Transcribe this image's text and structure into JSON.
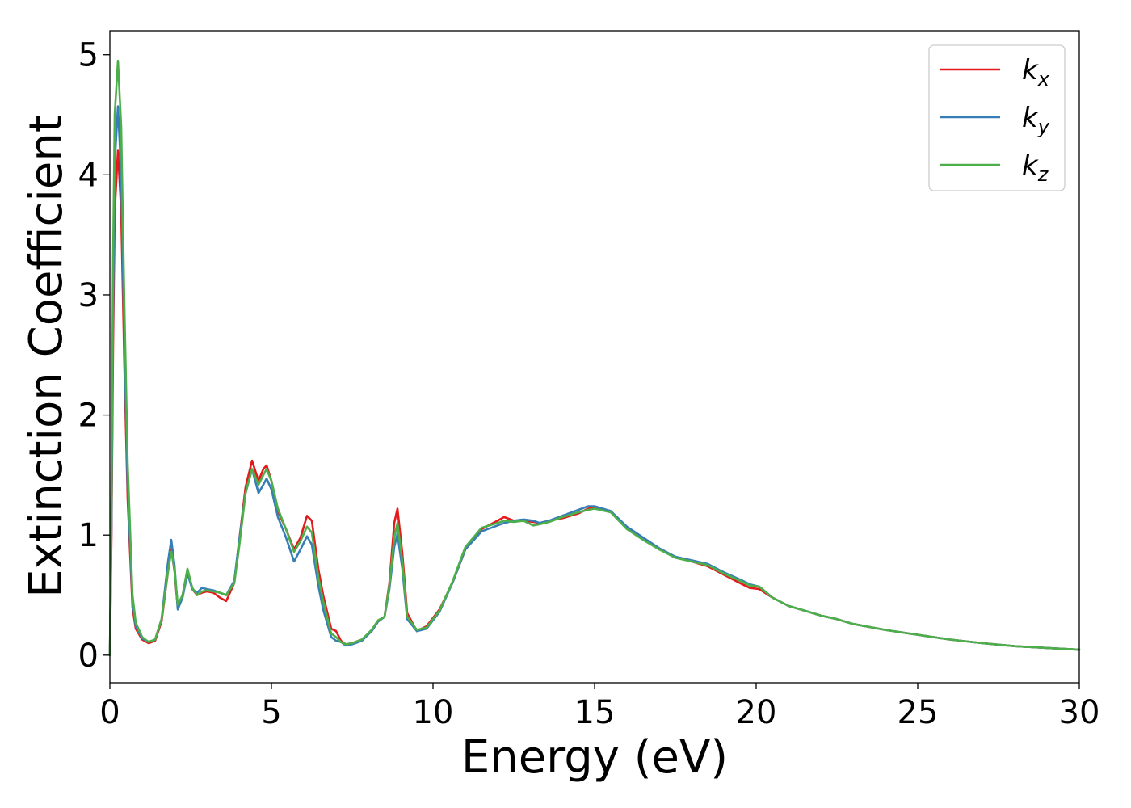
{
  "chart_data": {
    "type": "line",
    "xlabel": "Energy (eV)",
    "ylabel": "Extinction Coefficient",
    "xlim": [
      0,
      30
    ],
    "ylim": [
      -0.23,
      5.2
    ],
    "xticks": [
      0,
      5,
      10,
      15,
      20,
      25,
      30
    ],
    "yticks": [
      0,
      1,
      2,
      3,
      4,
      5
    ],
    "grid": false,
    "legend_position": "top-right",
    "series": [
      {
        "name": "k",
        "subscript": "x",
        "color": "#e41a1c",
        "x": [
          0,
          0.05,
          0.1,
          0.15,
          0.25,
          0.35,
          0.45,
          0.55,
          0.7,
          0.8,
          1.0,
          1.2,
          1.4,
          1.6,
          1.8,
          1.9,
          2.0,
          2.1,
          2.25,
          2.4,
          2.55,
          2.7,
          2.85,
          3.0,
          3.2,
          3.4,
          3.6,
          3.85,
          4.0,
          4.2,
          4.4,
          4.6,
          4.75,
          4.85,
          5.0,
          5.2,
          5.45,
          5.7,
          5.9,
          6.1,
          6.25,
          6.45,
          6.6,
          6.85,
          7.0,
          7.15,
          7.3,
          7.5,
          7.8,
          8.1,
          8.3,
          8.5,
          8.65,
          8.8,
          8.9,
          9.05,
          9.2,
          9.5,
          9.8,
          10.2,
          10.6,
          11.0,
          11.5,
          12.0,
          12.2,
          12.5,
          12.8,
          13.1,
          13.3,
          13.6,
          14.0,
          14.5,
          14.8,
          15.0,
          15.5,
          16.0,
          16.5,
          17.0,
          17.5,
          18.0,
          18.5,
          19.0,
          19.5,
          19.8,
          20.1,
          20.5,
          21.0,
          21.5,
          22.0,
          22.5,
          23.0,
          24.0,
          25.0,
          26.0,
          27.0,
          28.0,
          29.0,
          30.0
        ],
        "values": [
          0.0,
          1.0,
          2.6,
          3.7,
          4.2,
          3.7,
          2.4,
          1.3,
          0.4,
          0.22,
          0.13,
          0.1,
          0.12,
          0.28,
          0.7,
          0.88,
          0.7,
          0.4,
          0.5,
          0.7,
          0.55,
          0.5,
          0.52,
          0.53,
          0.52,
          0.48,
          0.45,
          0.6,
          0.95,
          1.4,
          1.62,
          1.45,
          1.55,
          1.58,
          1.45,
          1.2,
          1.05,
          0.88,
          0.98,
          1.16,
          1.12,
          0.72,
          0.5,
          0.22,
          0.2,
          0.12,
          0.09,
          0.1,
          0.13,
          0.2,
          0.28,
          0.32,
          0.6,
          1.1,
          1.22,
          0.85,
          0.35,
          0.2,
          0.24,
          0.38,
          0.6,
          0.88,
          1.05,
          1.12,
          1.15,
          1.12,
          1.12,
          1.11,
          1.1,
          1.12,
          1.14,
          1.18,
          1.22,
          1.23,
          1.2,
          1.06,
          0.97,
          0.88,
          0.82,
          0.78,
          0.74,
          0.67,
          0.6,
          0.56,
          0.55,
          0.48,
          0.41,
          0.37,
          0.33,
          0.3,
          0.26,
          0.21,
          0.17,
          0.13,
          0.1,
          0.075,
          0.06,
          0.045
        ]
      },
      {
        "name": "k",
        "subscript": "y",
        "color": "#377eb8",
        "x": [
          0,
          0.05,
          0.1,
          0.15,
          0.25,
          0.35,
          0.45,
          0.55,
          0.7,
          0.8,
          1.0,
          1.2,
          1.4,
          1.6,
          1.8,
          1.9,
          2.0,
          2.1,
          2.25,
          2.4,
          2.55,
          2.7,
          2.85,
          3.0,
          3.2,
          3.4,
          3.6,
          3.85,
          4.0,
          4.2,
          4.4,
          4.6,
          4.75,
          4.85,
          5.0,
          5.2,
          5.45,
          5.7,
          5.9,
          6.1,
          6.25,
          6.45,
          6.6,
          6.85,
          7.0,
          7.15,
          7.3,
          7.5,
          7.8,
          8.1,
          8.3,
          8.5,
          8.65,
          8.8,
          8.9,
          9.05,
          9.2,
          9.5,
          9.8,
          10.2,
          10.6,
          11.0,
          11.5,
          12.0,
          12.2,
          12.5,
          12.8,
          13.1,
          13.3,
          13.6,
          14.0,
          14.5,
          14.8,
          15.0,
          15.5,
          16.0,
          16.5,
          17.0,
          17.5,
          18.0,
          18.5,
          19.0,
          19.5,
          19.8,
          20.1,
          20.5,
          21.0,
          21.5,
          22.0,
          22.5,
          23.0,
          24.0,
          25.0,
          26.0,
          27.0,
          28.0,
          29.0,
          30.0
        ],
        "values": [
          0.0,
          1.1,
          2.9,
          4.1,
          4.57,
          4.0,
          2.6,
          1.4,
          0.45,
          0.24,
          0.14,
          0.11,
          0.13,
          0.3,
          0.78,
          0.96,
          0.75,
          0.38,
          0.48,
          0.68,
          0.55,
          0.52,
          0.56,
          0.55,
          0.54,
          0.52,
          0.5,
          0.62,
          0.95,
          1.35,
          1.55,
          1.35,
          1.42,
          1.47,
          1.38,
          1.15,
          0.98,
          0.78,
          0.88,
          0.99,
          0.92,
          0.58,
          0.38,
          0.15,
          0.12,
          0.11,
          0.08,
          0.09,
          0.12,
          0.2,
          0.28,
          0.32,
          0.55,
          0.9,
          1.01,
          0.72,
          0.3,
          0.2,
          0.22,
          0.36,
          0.6,
          0.88,
          1.03,
          1.08,
          1.1,
          1.12,
          1.13,
          1.12,
          1.1,
          1.12,
          1.16,
          1.21,
          1.24,
          1.24,
          1.2,
          1.07,
          0.98,
          0.89,
          0.82,
          0.79,
          0.76,
          0.69,
          0.63,
          0.59,
          0.57,
          0.48,
          0.41,
          0.37,
          0.33,
          0.3,
          0.26,
          0.21,
          0.17,
          0.13,
          0.1,
          0.075,
          0.06,
          0.045
        ]
      },
      {
        "name": "k",
        "subscript": "z",
        "color": "#4daf4a",
        "x": [
          0,
          0.05,
          0.1,
          0.15,
          0.25,
          0.35,
          0.45,
          0.55,
          0.7,
          0.8,
          1.0,
          1.2,
          1.4,
          1.6,
          1.8,
          1.9,
          2.0,
          2.1,
          2.25,
          2.4,
          2.55,
          2.7,
          2.85,
          3.0,
          3.2,
          3.4,
          3.6,
          3.85,
          4.0,
          4.2,
          4.4,
          4.6,
          4.75,
          4.85,
          5.0,
          5.2,
          5.45,
          5.7,
          5.9,
          6.1,
          6.25,
          6.45,
          6.6,
          6.85,
          7.0,
          7.15,
          7.3,
          7.5,
          7.8,
          8.1,
          8.3,
          8.5,
          8.65,
          8.8,
          8.9,
          9.05,
          9.2,
          9.5,
          9.8,
          10.2,
          10.6,
          11.0,
          11.5,
          12.0,
          12.2,
          12.5,
          12.8,
          13.1,
          13.3,
          13.6,
          14.0,
          14.5,
          14.8,
          15.0,
          15.5,
          16.0,
          16.5,
          17.0,
          17.5,
          18.0,
          18.5,
          19.0,
          19.5,
          19.8,
          20.1,
          20.5,
          21.0,
          21.5,
          22.0,
          22.5,
          23.0,
          24.0,
          25.0,
          26.0,
          27.0,
          28.0,
          29.0,
          30.0
        ],
        "values": [
          0.0,
          1.3,
          3.3,
          4.5,
          4.95,
          4.4,
          2.9,
          1.6,
          0.5,
          0.27,
          0.15,
          0.11,
          0.13,
          0.3,
          0.7,
          0.86,
          0.72,
          0.42,
          0.5,
          0.72,
          0.56,
          0.5,
          0.53,
          0.54,
          0.53,
          0.52,
          0.5,
          0.6,
          0.9,
          1.35,
          1.55,
          1.42,
          1.5,
          1.55,
          1.45,
          1.22,
          1.05,
          0.86,
          0.95,
          1.07,
          1.02,
          0.65,
          0.45,
          0.18,
          0.15,
          0.11,
          0.09,
          0.1,
          0.13,
          0.21,
          0.29,
          0.32,
          0.58,
          0.98,
          1.1,
          0.78,
          0.32,
          0.21,
          0.23,
          0.37,
          0.61,
          0.9,
          1.06,
          1.1,
          1.12,
          1.11,
          1.12,
          1.08,
          1.09,
          1.11,
          1.15,
          1.19,
          1.21,
          1.22,
          1.19,
          1.05,
          0.96,
          0.88,
          0.81,
          0.78,
          0.75,
          0.68,
          0.62,
          0.58,
          0.57,
          0.48,
          0.41,
          0.37,
          0.33,
          0.3,
          0.26,
          0.21,
          0.17,
          0.13,
          0.1,
          0.075,
          0.06,
          0.045
        ]
      }
    ]
  }
}
